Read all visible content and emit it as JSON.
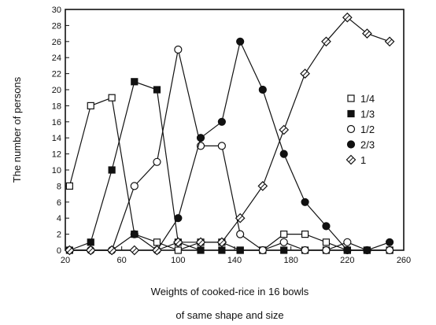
{
  "chart_data": {
    "type": "line",
    "title": "",
    "xlabel": "Weights of cooked-rice in 16 bowls",
    "xlabel_line2": "of same shape and size",
    "ylabel": "The number of persons",
    "xlim": [
      20,
      260
    ],
    "ylim": [
      0,
      30
    ],
    "xticks": [
      20,
      60,
      100,
      140,
      180,
      220,
      260
    ],
    "yticks": [
      0,
      2,
      4,
      6,
      8,
      10,
      12,
      14,
      16,
      18,
      20,
      22,
      24,
      26,
      28,
      30
    ],
    "grid": false,
    "legend_position": "right",
    "x": [
      23,
      38,
      53,
      69,
      85,
      100,
      116,
      131,
      144,
      160,
      175,
      190,
      205,
      220,
      234,
      250
    ],
    "series": [
      {
        "name": "1/4",
        "marker": "open-square",
        "values": [
          8,
          18,
          19,
          2,
          1,
          0,
          1,
          1,
          0,
          0,
          2,
          2,
          1,
          0,
          0,
          0
        ]
      },
      {
        "name": "1/3",
        "marker": "filled-square",
        "values": [
          0,
          1,
          10,
          21,
          20,
          1,
          0,
          0,
          0,
          0,
          0,
          0,
          0,
          0,
          0,
          0
        ]
      },
      {
        "name": "1/2",
        "marker": "open-circle",
        "values": [
          0,
          0,
          0,
          8,
          11,
          25,
          13,
          13,
          2,
          0,
          1,
          0,
          0,
          1,
          0,
          0
        ]
      },
      {
        "name": "2/3",
        "marker": "filled-circle",
        "values": [
          0,
          0,
          0,
          2,
          0,
          4,
          14,
          16,
          26,
          20,
          12,
          6,
          3,
          0,
          0,
          1
        ]
      },
      {
        "name": "1",
        "marker": "open-diamond",
        "values": [
          0,
          0,
          0,
          0,
          0,
          1,
          1,
          1,
          4,
          8,
          15,
          22,
          26,
          29,
          27,
          26
        ]
      }
    ]
  }
}
